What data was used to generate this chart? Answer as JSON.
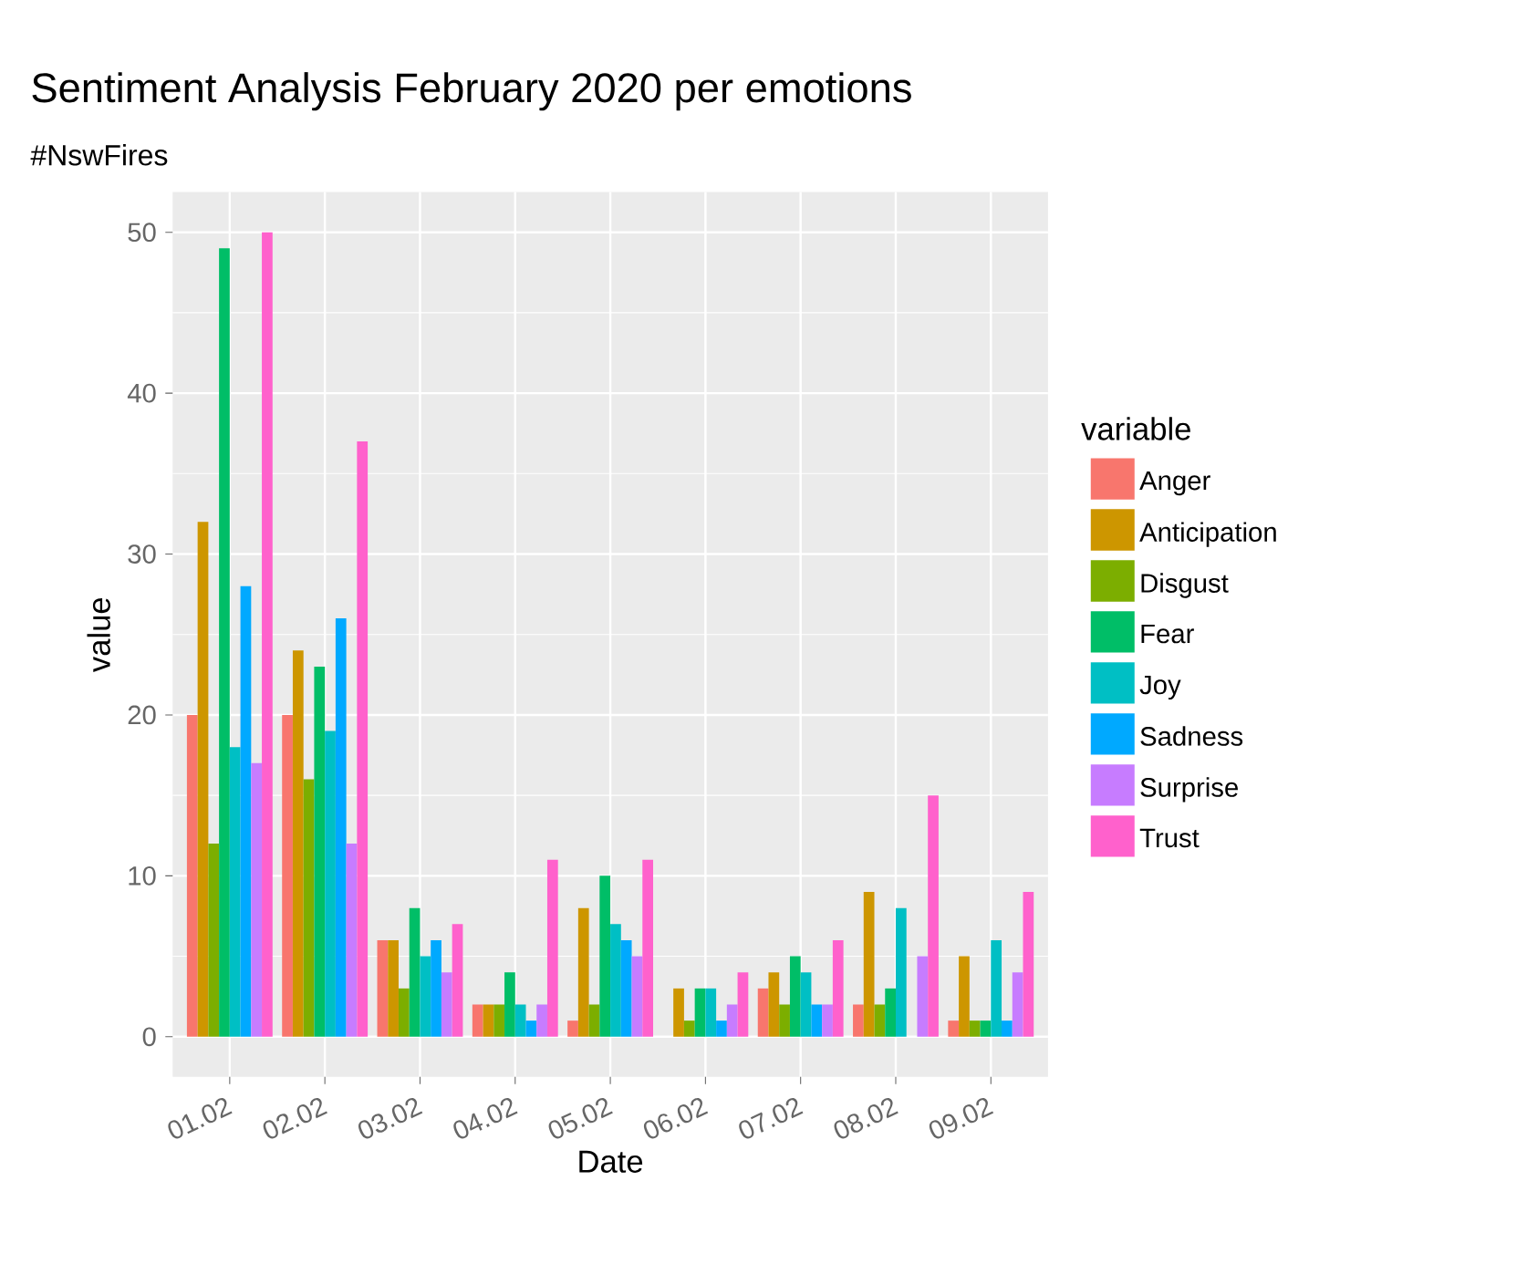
{
  "chart_data": {
    "type": "bar",
    "title": "Sentiment Analysis February 2020 per emotions",
    "subtitle": "#NswFires",
    "xlabel": "Date",
    "ylabel": "value",
    "legend_title": "variable",
    "categories": [
      "01.02",
      "02.02",
      "03.02",
      "04.02",
      "05.02",
      "06.02",
      "07.02",
      "08.02",
      "09.02"
    ],
    "series": [
      {
        "name": "Anger",
        "color": "#f8766d",
        "values": [
          20,
          20,
          6,
          2,
          1,
          0,
          3,
          2,
          1
        ]
      },
      {
        "name": "Anticipation",
        "color": "#cd9600",
        "values": [
          32,
          24,
          6,
          2,
          8,
          3,
          4,
          9,
          5
        ]
      },
      {
        "name": "Disgust",
        "color": "#7cae00",
        "values": [
          12,
          16,
          3,
          2,
          2,
          1,
          2,
          2,
          1
        ]
      },
      {
        "name": "Fear",
        "color": "#00be67",
        "values": [
          49,
          23,
          8,
          4,
          10,
          3,
          5,
          3,
          1
        ]
      },
      {
        "name": "Joy",
        "color": "#00bfc4",
        "values": [
          18,
          19,
          5,
          2,
          7,
          3,
          4,
          8,
          6
        ]
      },
      {
        "name": "Sadness",
        "color": "#00a9ff",
        "values": [
          28,
          26,
          6,
          1,
          6,
          1,
          2,
          0,
          1
        ]
      },
      {
        "name": "Surprise",
        "color": "#c77cff",
        "values": [
          17,
          12,
          4,
          2,
          5,
          2,
          2,
          5,
          4
        ]
      },
      {
        "name": "Trust",
        "color": "#ff61cc",
        "values": [
          50,
          37,
          7,
          11,
          11,
          4,
          6,
          15,
          9
        ]
      }
    ],
    "ylim": [
      -2.5,
      52.5
    ],
    "yticks": [
      0,
      10,
      20,
      30,
      40,
      50
    ],
    "grid": true,
    "legend": "right"
  }
}
